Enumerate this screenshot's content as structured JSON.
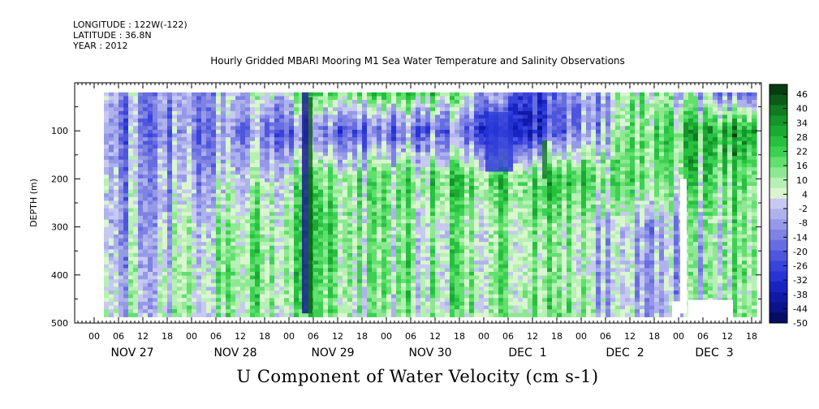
{
  "meta": {
    "longitude": "LONGITUDE : 122W(-122)",
    "latitude": "LATITUDE : 36.8N",
    "year": "YEAR : 2012"
  },
  "chart_data": {
    "type": "heatmap",
    "title": "Hourly Gridded MBARI Mooring M1 Sea Water Temperature and Salinity Observations",
    "xlabel": "U Component of Water Velocity (cm s-1)",
    "ylabel": "DEPTH (m)",
    "y_ticks": [
      "100",
      "200",
      "300",
      "400",
      "500"
    ],
    "ylim": [
      500,
      0
    ],
    "x_hour_ticks": [
      "00",
      "06",
      "12",
      "18",
      "00",
      "06",
      "12",
      "18",
      "00",
      "06",
      "12",
      "18",
      "00",
      "06",
      "12",
      "18",
      "00",
      "06",
      "12",
      "18",
      "00",
      "06",
      "12",
      "18",
      "00",
      "06",
      "12",
      "18"
    ],
    "x_date_labels": [
      "NOV 27",
      "NOV 28",
      "NOV 29",
      "NOV 30",
      "DEC  1",
      "DEC  2",
      "DEC  3"
    ],
    "colorbar_ticks": [
      "46",
      "40",
      "34",
      "28",
      "22",
      "16",
      "10",
      "4",
      "-2",
      "-8",
      "-14",
      "-20",
      "-26",
      "-32",
      "-38",
      "-44",
      "-50"
    ],
    "colorbar_colors": [
      "#063d10",
      "#0b5a18",
      "#117a22",
      "#15952a",
      "#1aaa33",
      "#27c03f",
      "#3cd153",
      "#63df6e",
      "#8ee893",
      "#b7f0b4",
      "#d9f6cf",
      "#c7c9f1",
      "#aeb2ec",
      "#9699e8",
      "#7e82e2",
      "#676de0",
      "#4f56dd",
      "#3843dc",
      "#2634d6",
      "#1824c2",
      "#101aa6",
      "#0a1387",
      "#060b63"
    ],
    "data": {
      "day_columns": [
        "NOV 27",
        "NOV 28",
        "NOV 29",
        "NOV 30",
        "DEC  1",
        "DEC  2",
        "DEC  3"
      ],
      "depth_rows_m": [
        20,
        100,
        200,
        300,
        400,
        480
      ],
      "values": [
        [
          -12,
          -6,
          14,
          20,
          -25,
          8,
          -24
        ],
        [
          -14,
          -10,
          -20,
          -18,
          -30,
          12,
          30
        ],
        [
          -8,
          -4,
          12,
          14,
          22,
          10,
          16
        ],
        [
          -10,
          6,
          16,
          4,
          14,
          -10,
          12
        ],
        [
          -6,
          10,
          14,
          8,
          12,
          -12,
          14
        ],
        [
          -4,
          8,
          10,
          6,
          16,
          -10,
          10
        ]
      ]
    }
  }
}
